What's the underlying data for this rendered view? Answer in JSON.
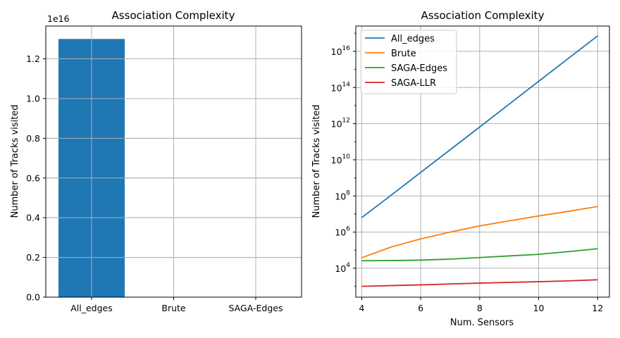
{
  "chart_data": [
    {
      "type": "bar",
      "title": "Association Complexity",
      "xlabel": "",
      "ylabel": "Number of Tracks visited",
      "offset_label": "1e16",
      "categories": [
        "All_edges",
        "Brute",
        "SAGA-Edges"
      ],
      "values": [
        1.3e+16,
        29000000.0,
        120000.0
      ],
      "ylim": [
        0,
        1.365e+16
      ],
      "yticks": [
        0,
        2000000000000000.0,
        4000000000000000.0,
        6000000000000000.0,
        8000000000000000.0,
        1e+16,
        1.2e+16
      ],
      "ytick_labels": [
        "0.0",
        "0.2",
        "0.4",
        "0.6",
        "0.8",
        "1.0",
        "1.2"
      ],
      "bar_color": "#1f77b4",
      "grid": true
    },
    {
      "type": "line",
      "title": "Association Complexity",
      "xlabel": "Num. Sensors",
      "ylabel": "Number of Tracks visited",
      "yscale": "log",
      "xlim": [
        3.8,
        12.4
      ],
      "ylim_log10": [
        2.4,
        17.4
      ],
      "xticks": [
        4,
        6,
        8,
        10,
        12
      ],
      "xtick_labels": [
        "4",
        "6",
        "8",
        "10",
        "12"
      ],
      "yticks_log10": [
        4,
        6,
        8,
        10,
        12,
        14,
        16
      ],
      "ytick_labels": [
        {
          "base": "10",
          "exp": "4"
        },
        {
          "base": "10",
          "exp": "6"
        },
        {
          "base": "10",
          "exp": "8"
        },
        {
          "base": "10",
          "exp": "10"
        },
        {
          "base": "10",
          "exp": "12"
        },
        {
          "base": "10",
          "exp": "14"
        },
        {
          "base": "10",
          "exp": "16"
        }
      ],
      "x": [
        4,
        5,
        6,
        7,
        8,
        9,
        10,
        11,
        12
      ],
      "series": [
        {
          "name": "All_edges",
          "color": "#1f77b4",
          "values": [
            6300000.0,
            110000000.0,
            2000000000.0,
            36000000000.0,
            650000000000.0,
            12000000000000.0,
            220000000000000.0,
            4000000000000000.0,
            7.2e+16
          ]
        },
        {
          "name": "Brute",
          "color": "#ff7f0e",
          "values": [
            38000.0,
            150000.0,
            420000.0,
            1000000.0,
            2200000.0,
            4200000.0,
            7800000.0,
            14000000.0,
            26000000.0
          ]
        },
        {
          "name": "SAGA-Edges",
          "color": "#2ca02c",
          "values": [
            26000.0,
            26500.0,
            28000.0,
            32000.0,
            39000.0,
            48000.0,
            59000.0,
            83000.0,
            120000.0
          ]
        },
        {
          "name": "SAGA-LLR",
          "color": "#d62728",
          "values": [
            1000.0,
            1100.0,
            1200.0,
            1350.0,
            1500.0,
            1650.0,
            1800.0,
            2000.0,
            2300.0
          ]
        }
      ],
      "legend_position": "upper-left",
      "grid": true
    }
  ]
}
